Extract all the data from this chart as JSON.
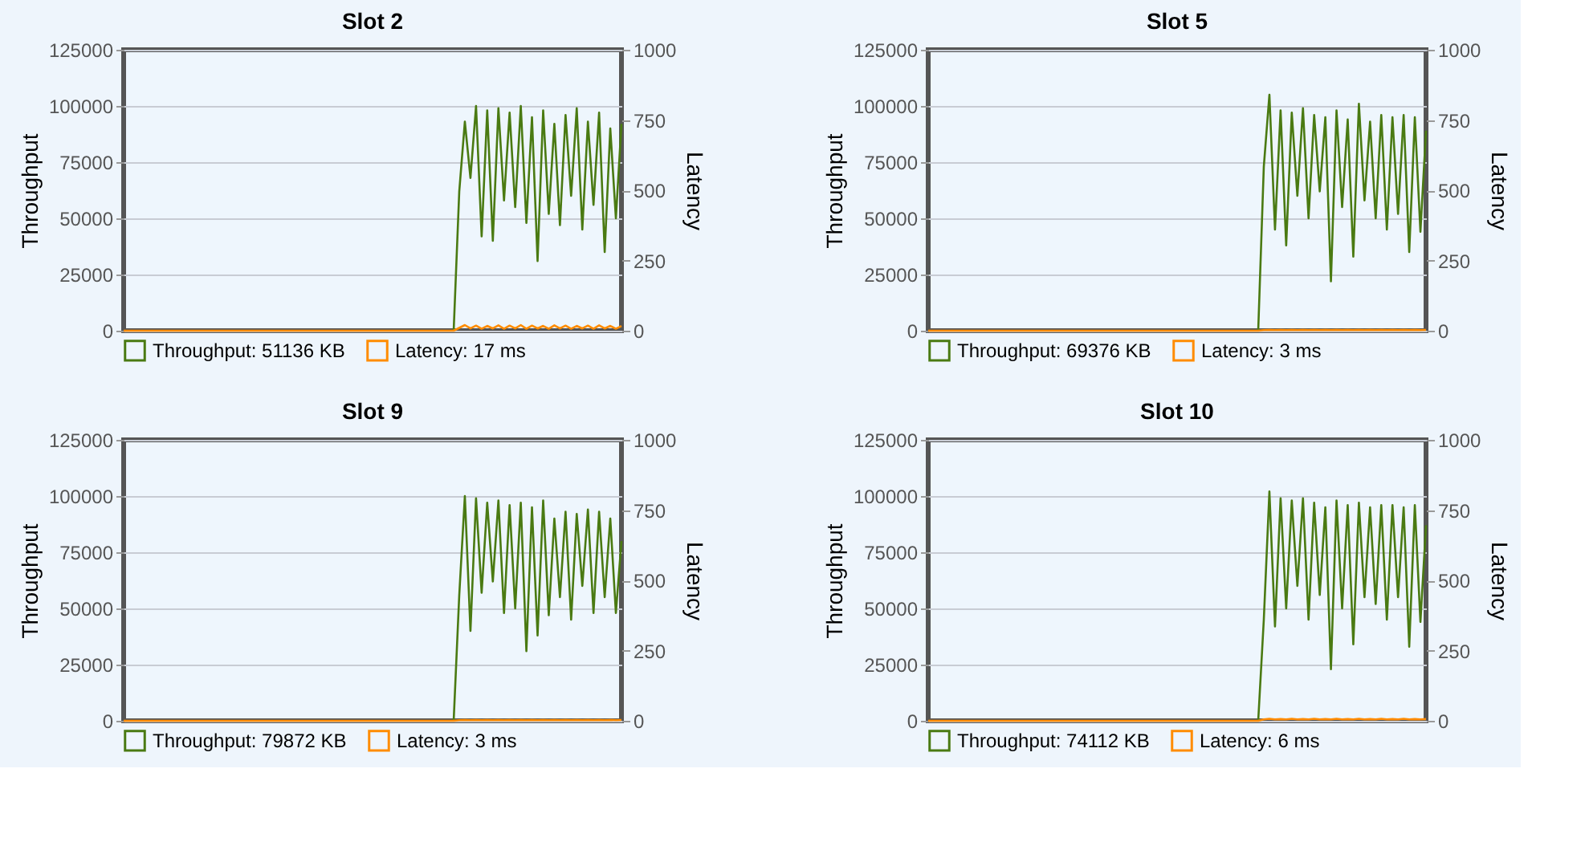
{
  "chart_data": [
    {
      "type": "line",
      "title": "Slot 2",
      "ylabel": "Throughput",
      "y2label": "Latency",
      "categories": [
        null,
        null,
        null,
        null,
        null,
        null,
        null,
        null,
        null,
        null,
        null,
        null,
        null,
        null,
        null,
        null,
        null,
        null,
        null,
        null,
        null,
        null,
        null,
        null,
        null,
        null,
        null,
        null,
        null,
        null,
        null,
        null,
        null,
        null,
        null,
        null,
        null,
        null,
        null,
        null,
        null,
        null,
        null,
        null,
        null,
        null,
        null,
        null,
        null,
        null,
        null,
        null,
        null,
        null,
        null,
        null,
        null,
        null,
        null,
        null,
        null,
        null,
        null,
        null,
        null,
        null,
        null,
        null,
        null,
        null,
        null,
        null,
        null,
        null,
        null,
        null,
        null,
        null,
        null,
        null,
        null,
        null,
        null,
        null,
        null,
        null,
        null,
        null,
        null,
        null
      ],
      "ylim": [
        0,
        125000
      ],
      "yticks": [
        0,
        25000,
        50000,
        75000,
        100000,
        125000
      ],
      "y2lim": [
        0,
        1000
      ],
      "y2ticks": [
        0,
        250,
        500,
        750,
        1000
      ],
      "grid": "y",
      "legend": "bottom",
      "series": [
        {
          "name": "Throughput: 51136 KB",
          "color": "#4a7a12",
          "values": [
            null,
            null,
            null,
            null,
            null,
            null,
            null,
            null,
            null,
            null,
            null,
            null,
            null,
            null,
            null,
            null,
            null,
            null,
            null,
            null,
            null,
            null,
            null,
            null,
            null,
            null,
            null,
            null,
            null,
            null,
            null,
            null,
            null,
            null,
            null,
            null,
            null,
            null,
            null,
            null,
            null,
            null,
            null,
            null,
            null,
            null,
            null,
            null,
            null,
            null,
            null,
            null,
            null,
            null,
            null,
            null,
            null,
            null,
            null,
            0,
            62000,
            93000,
            68000,
            100000,
            42000,
            98000,
            40000,
            99000,
            58000,
            97000,
            55000,
            100000,
            48000,
            95000,
            31000,
            98000,
            52000,
            92000,
            47000,
            96000,
            60000,
            99000,
            45000,
            93000,
            56000,
            97000,
            35000,
            90000,
            50000,
            92000
          ]
        },
        {
          "name": "Latency: 17 ms",
          "color": "#ff8c00",
          "axis": "y2",
          "values": [
            0,
            0,
            0,
            0,
            0,
            0,
            0,
            0,
            0,
            0,
            0,
            0,
            0,
            0,
            0,
            0,
            0,
            0,
            0,
            0,
            0,
            0,
            0,
            0,
            0,
            0,
            0,
            0,
            0,
            0,
            0,
            0,
            0,
            0,
            0,
            0,
            0,
            0,
            0,
            0,
            0,
            0,
            0,
            0,
            0,
            0,
            0,
            0,
            0,
            0,
            0,
            0,
            0,
            0,
            0,
            0,
            0,
            0,
            0,
            0,
            10,
            20,
            8,
            18,
            7,
            17,
            8,
            19,
            7,
            18,
            8,
            20,
            7,
            18,
            8,
            17,
            7,
            19,
            8,
            18,
            7,
            17,
            8,
            18,
            7,
            19,
            8,
            17,
            7,
            17
          ]
        }
      ]
    },
    {
      "type": "line",
      "title": "Slot 5",
      "ylabel": "Throughput",
      "y2label": "Latency",
      "categories": [
        null,
        null,
        null,
        null,
        null,
        null,
        null,
        null,
        null,
        null,
        null,
        null,
        null,
        null,
        null,
        null,
        null,
        null,
        null,
        null,
        null,
        null,
        null,
        null,
        null,
        null,
        null,
        null,
        null,
        null,
        null,
        null,
        null,
        null,
        null,
        null,
        null,
        null,
        null,
        null,
        null,
        null,
        null,
        null,
        null,
        null,
        null,
        null,
        null,
        null,
        null,
        null,
        null,
        null,
        null,
        null,
        null,
        null,
        null,
        null,
        null,
        null,
        null,
        null,
        null,
        null,
        null,
        null,
        null,
        null,
        null,
        null,
        null,
        null,
        null,
        null,
        null,
        null,
        null,
        null,
        null,
        null,
        null,
        null,
        null,
        null,
        null,
        null,
        null,
        null
      ],
      "ylim": [
        0,
        125000
      ],
      "yticks": [
        0,
        25000,
        50000,
        75000,
        100000,
        125000
      ],
      "y2lim": [
        0,
        1000
      ],
      "y2ticks": [
        0,
        250,
        500,
        750,
        1000
      ],
      "grid": "y",
      "legend": "bottom",
      "series": [
        {
          "name": "Throughput: 69376 KB",
          "color": "#4a7a12",
          "values": [
            null,
            null,
            null,
            null,
            null,
            null,
            null,
            null,
            null,
            null,
            null,
            null,
            null,
            null,
            null,
            null,
            null,
            null,
            null,
            null,
            null,
            null,
            null,
            null,
            null,
            null,
            null,
            null,
            null,
            null,
            null,
            null,
            null,
            null,
            null,
            null,
            null,
            null,
            null,
            null,
            null,
            null,
            null,
            null,
            null,
            null,
            null,
            null,
            null,
            null,
            null,
            null,
            null,
            null,
            null,
            null,
            null,
            null,
            null,
            0,
            73000,
            105000,
            45000,
            98000,
            38000,
            97000,
            60000,
            99000,
            50000,
            96000,
            62000,
            95000,
            22000,
            98000,
            55000,
            94000,
            33000,
            101000,
            58000,
            93000,
            50000,
            96000,
            45000,
            95000,
            52000,
            96000,
            35000,
            95000,
            44000,
            89000
          ]
        },
        {
          "name": "Latency: 3 ms",
          "color": "#ff8c00",
          "axis": "y2",
          "values": [
            0,
            0,
            0,
            0,
            0,
            0,
            0,
            0,
            0,
            0,
            0,
            0,
            0,
            0,
            0,
            0,
            0,
            0,
            0,
            0,
            0,
            0,
            0,
            0,
            0,
            0,
            0,
            0,
            0,
            0,
            0,
            0,
            0,
            0,
            0,
            0,
            0,
            0,
            0,
            0,
            0,
            0,
            0,
            0,
            0,
            0,
            0,
            0,
            0,
            0,
            0,
            0,
            0,
            0,
            0,
            0,
            0,
            0,
            0,
            0,
            2,
            3,
            2,
            3,
            2,
            3,
            2,
            3,
            2,
            3,
            2,
            3,
            2,
            3,
            2,
            3,
            2,
            3,
            2,
            3,
            2,
            3,
            2,
            3,
            2,
            3,
            2,
            3,
            2,
            3
          ]
        }
      ]
    },
    {
      "type": "line",
      "title": "Slot 9",
      "ylabel": "Throughput",
      "y2label": "Latency",
      "categories": [
        null,
        null,
        null,
        null,
        null,
        null,
        null,
        null,
        null,
        null,
        null,
        null,
        null,
        null,
        null,
        null,
        null,
        null,
        null,
        null,
        null,
        null,
        null,
        null,
        null,
        null,
        null,
        null,
        null,
        null,
        null,
        null,
        null,
        null,
        null,
        null,
        null,
        null,
        null,
        null,
        null,
        null,
        null,
        null,
        null,
        null,
        null,
        null,
        null,
        null,
        null,
        null,
        null,
        null,
        null,
        null,
        null,
        null,
        null,
        null,
        null,
        null,
        null,
        null,
        null,
        null,
        null,
        null,
        null,
        null,
        null,
        null,
        null,
        null,
        null,
        null,
        null,
        null,
        null,
        null,
        null,
        null,
        null,
        null,
        null,
        null,
        null,
        null,
        null,
        null
      ],
      "ylim": [
        0,
        125000
      ],
      "yticks": [
        0,
        25000,
        50000,
        75000,
        100000,
        125000
      ],
      "y2lim": [
        0,
        1000
      ],
      "y2ticks": [
        0,
        250,
        500,
        750,
        1000
      ],
      "grid": "y",
      "legend": "bottom",
      "series": [
        {
          "name": "Throughput: 79872 KB",
          "color": "#4a7a12",
          "values": [
            null,
            null,
            null,
            null,
            null,
            null,
            null,
            null,
            null,
            null,
            null,
            null,
            null,
            null,
            null,
            null,
            null,
            null,
            null,
            null,
            null,
            null,
            null,
            null,
            null,
            null,
            null,
            null,
            null,
            null,
            null,
            null,
            null,
            null,
            null,
            null,
            null,
            null,
            null,
            null,
            null,
            null,
            null,
            null,
            null,
            null,
            null,
            null,
            null,
            null,
            null,
            null,
            null,
            null,
            null,
            null,
            null,
            null,
            null,
            0,
            56000,
            100000,
            40000,
            99000,
            57000,
            97000,
            62000,
            98000,
            48000,
            96000,
            50000,
            97000,
            31000,
            95000,
            38000,
            98000,
            47000,
            90000,
            55000,
            93000,
            45000,
            92000,
            60000,
            94000,
            48000,
            93000,
            55000,
            90000,
            48000,
            80000
          ]
        },
        {
          "name": "Latency: 3 ms",
          "color": "#ff8c00",
          "axis": "y2",
          "values": [
            0,
            0,
            0,
            0,
            0,
            0,
            0,
            0,
            0,
            0,
            0,
            0,
            0,
            0,
            0,
            0,
            0,
            0,
            0,
            0,
            0,
            0,
            0,
            0,
            0,
            0,
            0,
            0,
            0,
            0,
            0,
            0,
            0,
            0,
            0,
            0,
            0,
            0,
            0,
            0,
            0,
            0,
            0,
            0,
            0,
            0,
            0,
            0,
            0,
            0,
            0,
            0,
            0,
            0,
            0,
            0,
            0,
            0,
            0,
            0,
            2,
            3,
            2,
            3,
            2,
            3,
            2,
            3,
            2,
            3,
            2,
            3,
            2,
            3,
            2,
            3,
            2,
            3,
            2,
            3,
            2,
            3,
            2,
            3,
            2,
            3,
            2,
            3,
            2,
            3
          ]
        }
      ]
    },
    {
      "type": "line",
      "title": "Slot 10",
      "ylabel": "Throughput",
      "y2label": "Latency",
      "categories": [
        null,
        null,
        null,
        null,
        null,
        null,
        null,
        null,
        null,
        null,
        null,
        null,
        null,
        null,
        null,
        null,
        null,
        null,
        null,
        null,
        null,
        null,
        null,
        null,
        null,
        null,
        null,
        null,
        null,
        null,
        null,
        null,
        null,
        null,
        null,
        null,
        null,
        null,
        null,
        null,
        null,
        null,
        null,
        null,
        null,
        null,
        null,
        null,
        null,
        null,
        null,
        null,
        null,
        null,
        null,
        null,
        null,
        null,
        null,
        null,
        null,
        null,
        null,
        null,
        null,
        null,
        null,
        null,
        null,
        null,
        null,
        null,
        null,
        null,
        null,
        null,
        null,
        null,
        null,
        null,
        null,
        null,
        null,
        null,
        null,
        null,
        null,
        null,
        null,
        null
      ],
      "ylim": [
        0,
        125000
      ],
      "yticks": [
        0,
        25000,
        50000,
        75000,
        100000,
        125000
      ],
      "y2lim": [
        0,
        1000
      ],
      "y2ticks": [
        0,
        250,
        500,
        750,
        1000
      ],
      "grid": "y",
      "legend": "bottom",
      "series": [
        {
          "name": "Throughput: 74112 KB",
          "color": "#4a7a12",
          "values": [
            null,
            null,
            null,
            null,
            null,
            null,
            null,
            null,
            null,
            null,
            null,
            null,
            null,
            null,
            null,
            null,
            null,
            null,
            null,
            null,
            null,
            null,
            null,
            null,
            null,
            null,
            null,
            null,
            null,
            null,
            null,
            null,
            null,
            null,
            null,
            null,
            null,
            null,
            null,
            null,
            null,
            null,
            null,
            null,
            null,
            null,
            null,
            null,
            null,
            null,
            null,
            null,
            null,
            null,
            null,
            null,
            null,
            null,
            null,
            0,
            45000,
            102000,
            42000,
            99000,
            50000,
            98000,
            60000,
            99000,
            45000,
            97000,
            56000,
            95000,
            23000,
            98000,
            50000,
            96000,
            34000,
            97000,
            55000,
            95000,
            52000,
            96000,
            45000,
            96000,
            55000,
            95000,
            33000,
            96000,
            44000,
            87000
          ]
        },
        {
          "name": "Latency: 6 ms",
          "color": "#ff8c00",
          "axis": "y2",
          "values": [
            0,
            0,
            0,
            0,
            0,
            0,
            0,
            0,
            0,
            0,
            0,
            0,
            0,
            0,
            0,
            0,
            0,
            0,
            0,
            0,
            0,
            0,
            0,
            0,
            0,
            0,
            0,
            0,
            0,
            0,
            0,
            0,
            0,
            0,
            0,
            0,
            0,
            0,
            0,
            0,
            0,
            0,
            0,
            0,
            0,
            0,
            0,
            0,
            0,
            0,
            0,
            0,
            0,
            0,
            0,
            0,
            0,
            0,
            0,
            0,
            5,
            7,
            5,
            6,
            5,
            7,
            5,
            6,
            5,
            7,
            5,
            6,
            5,
            7,
            5,
            6,
            5,
            7,
            5,
            6,
            5,
            7,
            5,
            6,
            5,
            7,
            5,
            6,
            5,
            6
          ]
        }
      ]
    }
  ]
}
